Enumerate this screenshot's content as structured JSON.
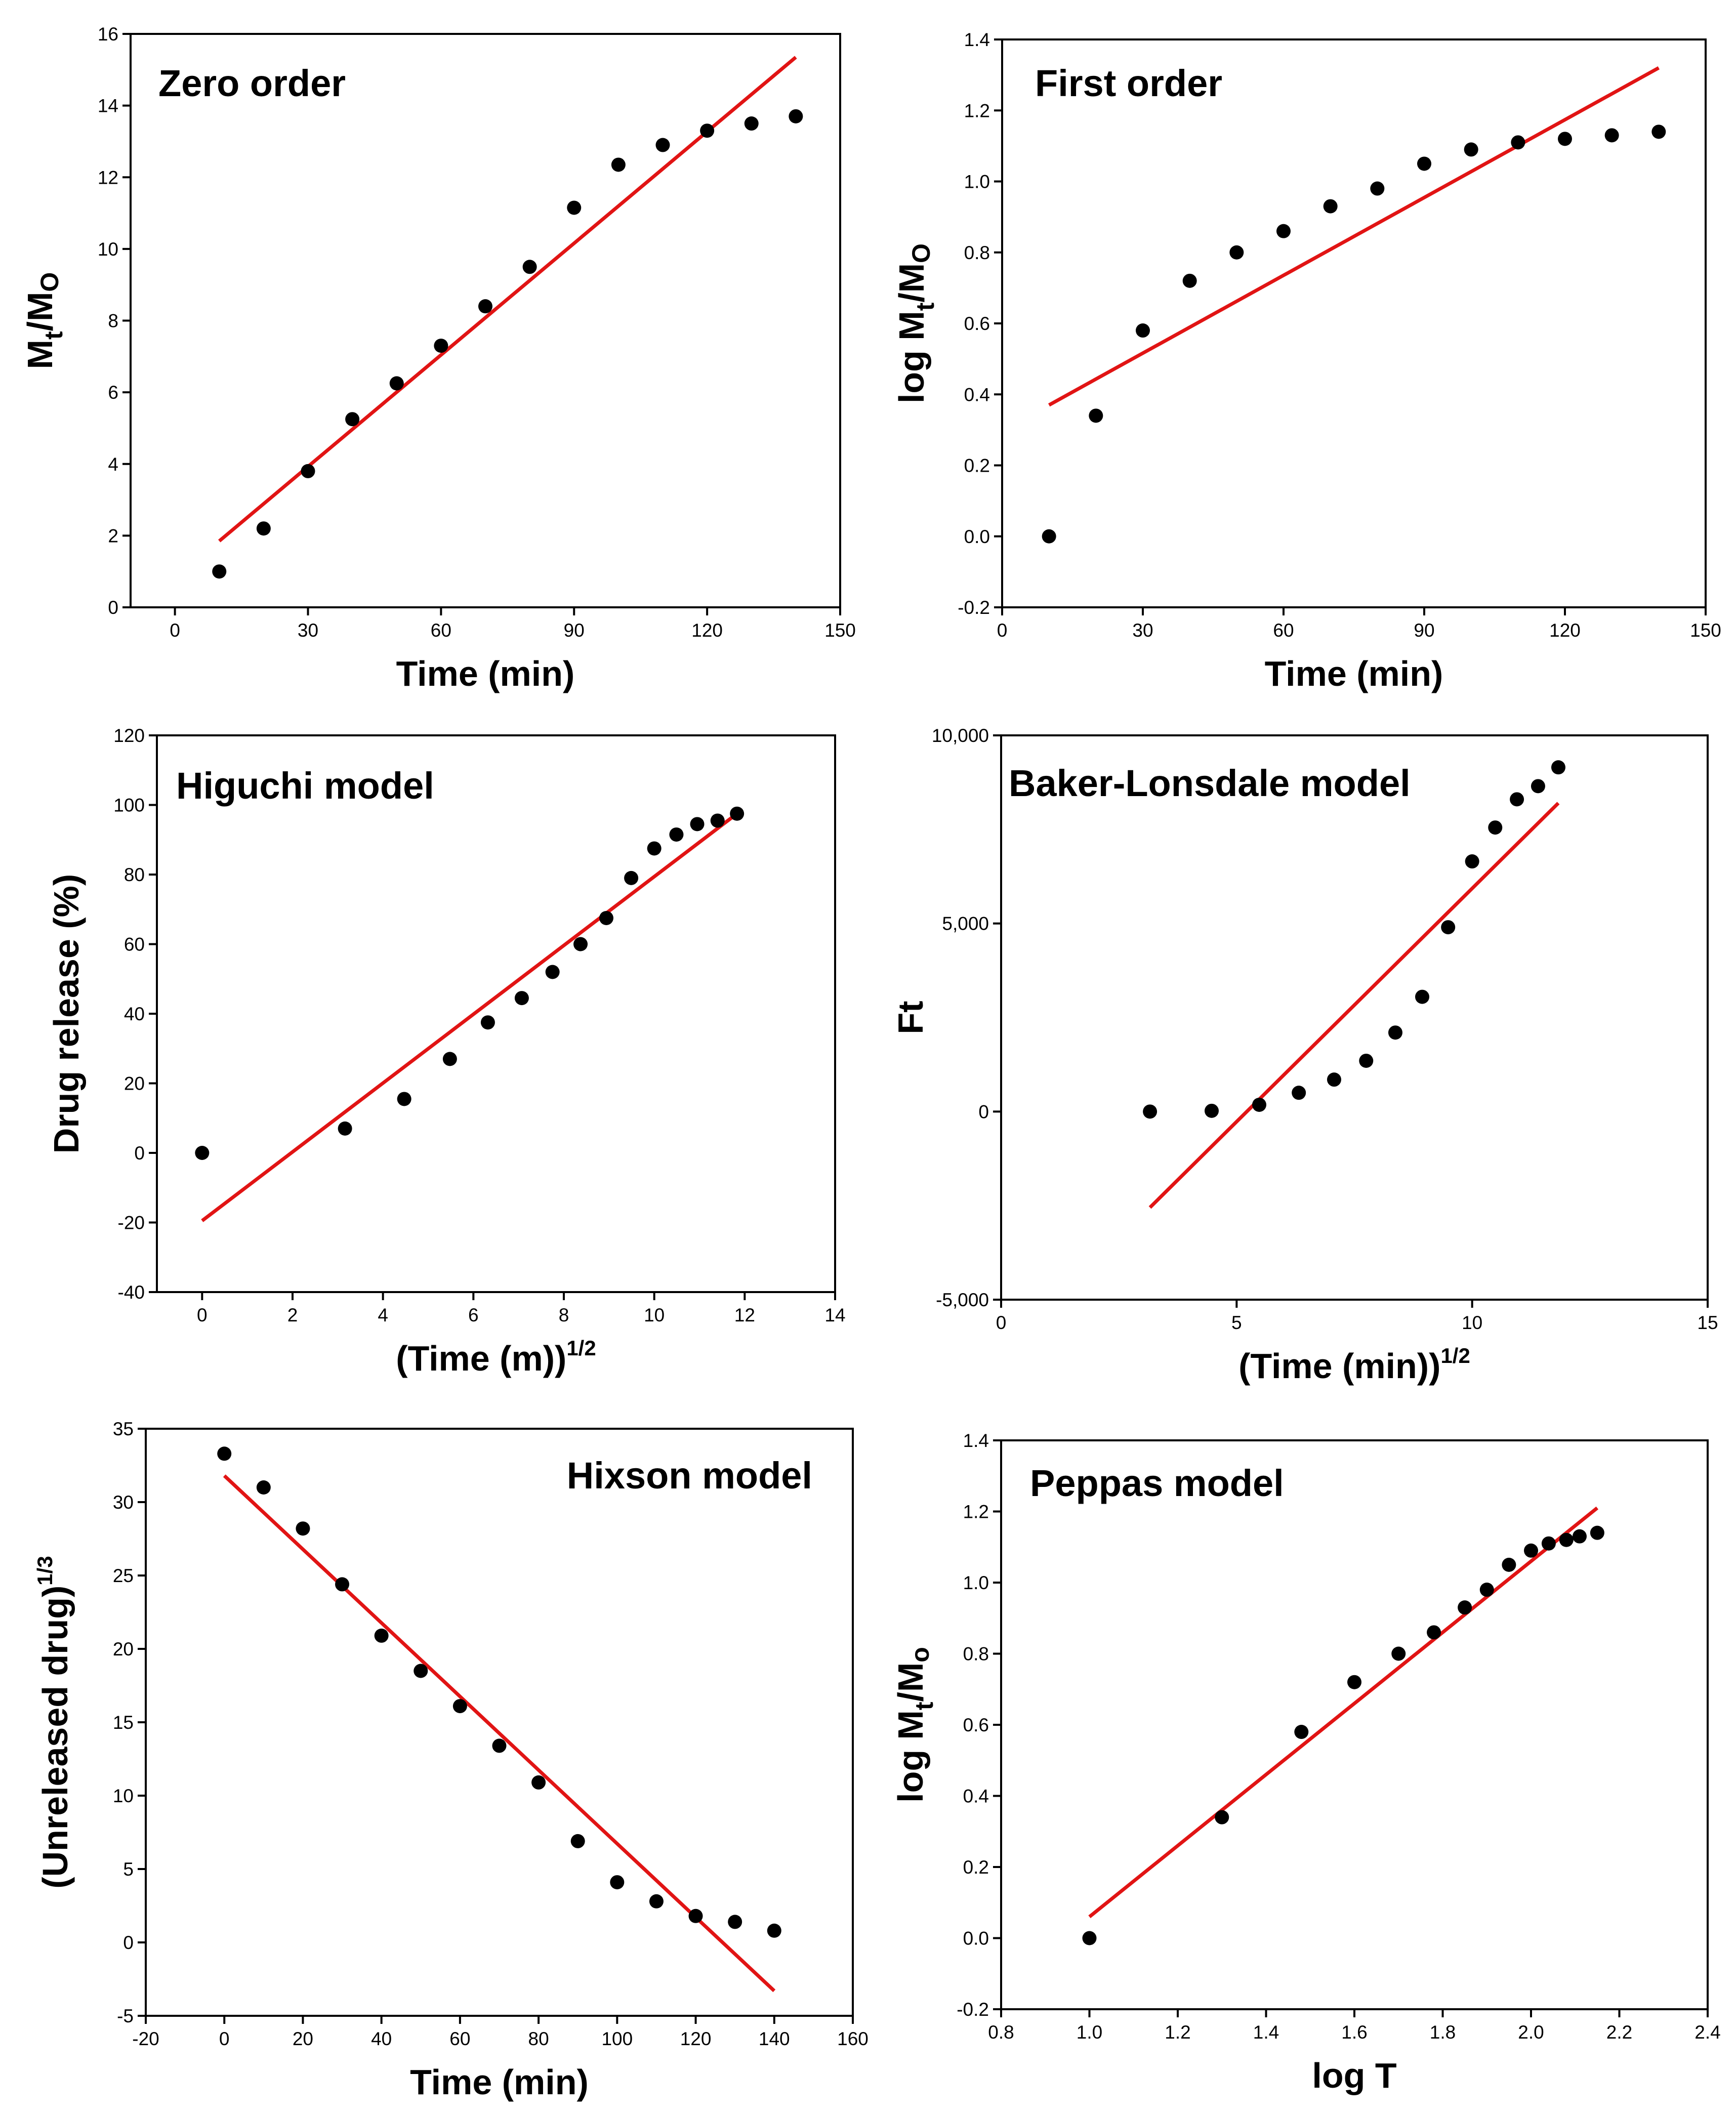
{
  "chart_data": [
    {
      "type": "scatter",
      "title": "Zero order",
      "title_pos": "top-left",
      "xlabel": "Time (min)",
      "ylabel": {
        "main": "M",
        "sub1": "t",
        "mid": "/M",
        "sub2": "O"
      },
      "xlim": [
        -10,
        150
      ],
      "ylim": [
        0,
        16
      ],
      "xticks": [
        0,
        30,
        60,
        90,
        120,
        150
      ],
      "xtick_labels": [
        "0",
        "30",
        "60",
        "90",
        "120",
        "150"
      ],
      "yticks": [
        0,
        2,
        4,
        6,
        8,
        10,
        12,
        14,
        16
      ],
      "ytick_labels": [
        "0",
        "2",
        "4",
        "6",
        "8",
        "10",
        "12",
        "14",
        "16"
      ],
      "points": {
        "x": [
          10,
          20,
          30,
          40,
          50,
          60,
          70,
          80,
          90,
          100,
          110,
          120,
          130,
          140
        ],
        "y": [
          1.0,
          2.2,
          3.8,
          5.25,
          6.25,
          7.3,
          8.4,
          9.5,
          11.15,
          12.35,
          12.9,
          13.3,
          13.5,
          13.7
        ]
      },
      "fit_line": {
        "x": [
          10,
          140
        ],
        "y": [
          1.85,
          15.35
        ]
      }
    },
    {
      "type": "scatter",
      "title": "First order",
      "title_pos": "top-left",
      "xlabel": "Time (min)",
      "ylabel": {
        "main": "log M",
        "sub1": "t",
        "mid": "/M",
        "sub2": "O"
      },
      "xlim": [
        0,
        150
      ],
      "ylim": [
        -0.2,
        1.4
      ],
      "xticks": [
        0,
        30,
        60,
        90,
        120,
        150
      ],
      "xtick_labels": [
        "0",
        "30",
        "60",
        "90",
        "120",
        "150"
      ],
      "yticks": [
        -0.2,
        0.0,
        0.2,
        0.4,
        0.6,
        0.8,
        1.0,
        1.2,
        1.4
      ],
      "ytick_labels": [
        "-0.2",
        "0.0",
        "0.2",
        "0.4",
        "0.6",
        "0.8",
        "1.0",
        "1.2",
        "1.4"
      ],
      "points": {
        "x": [
          10,
          20,
          30,
          40,
          50,
          60,
          70,
          80,
          90,
          100,
          110,
          120,
          130,
          140
        ],
        "y": [
          0.0,
          0.34,
          0.58,
          0.72,
          0.8,
          0.86,
          0.93,
          0.98,
          1.05,
          1.09,
          1.11,
          1.12,
          1.13,
          1.14
        ]
      },
      "fit_line": {
        "x": [
          10,
          140
        ],
        "y": [
          0.37,
          1.32
        ]
      }
    },
    {
      "type": "scatter",
      "title": "Higuchi model",
      "title_pos": "top-left",
      "xlabel": {
        "main": "(Time (m))",
        "sup": "1/2"
      },
      "ylabel": "Drug release (%)",
      "xlim": [
        -1,
        14
      ],
      "ylim": [
        -40,
        120
      ],
      "xticks": [
        0,
        2,
        4,
        6,
        8,
        10,
        12,
        14
      ],
      "xtick_labels": [
        "0",
        "2",
        "4",
        "6",
        "8",
        "10",
        "12",
        "14"
      ],
      "yticks": [
        -40,
        -20,
        0,
        20,
        40,
        60,
        80,
        100,
        120
      ],
      "ytick_labels": [
        "-40",
        "-20",
        "0",
        "20",
        "40",
        "60",
        "80",
        "100",
        "120"
      ],
      "points": {
        "x": [
          0,
          3.16,
          4.47,
          5.48,
          6.32,
          7.07,
          7.75,
          8.37,
          8.94,
          9.49,
          10.0,
          10.49,
          10.95,
          11.4,
          11.83
        ],
        "y": [
          0,
          7,
          15.5,
          27,
          37.5,
          44.5,
          52,
          60,
          67.5,
          79,
          87.5,
          91.5,
          94.5,
          95.5,
          97.5
        ]
      },
      "fit_line": {
        "x": [
          0,
          11.83
        ],
        "y": [
          -19.5,
          97.5
        ]
      }
    },
    {
      "type": "scatter",
      "title": "Baker-Lonsdale  model",
      "title_pos": "top-left",
      "xlabel": {
        "main": "(Time (min))",
        "sup": "1/2"
      },
      "ylabel": "Ft",
      "xlim": [
        0,
        15
      ],
      "ylim": [
        -5000,
        10000
      ],
      "xticks": [
        0,
        5,
        10,
        15
      ],
      "xtick_labels": [
        "0",
        "5",
        "10",
        "15"
      ],
      "yticks": [
        -5000,
        0,
        5000,
        10000
      ],
      "ytick_labels": [
        "-5,000",
        "0",
        "5,000",
        "10,000"
      ],
      "points": {
        "x": [
          3.16,
          4.47,
          5.48,
          6.32,
          7.07,
          7.75,
          8.37,
          8.94,
          9.49,
          10.0,
          10.49,
          10.95,
          11.4,
          11.83
        ],
        "y": [
          0,
          20,
          180,
          500,
          850,
          1350,
          2100,
          3050,
          4900,
          6650,
          7550,
          8300,
          8650,
          9150
        ]
      },
      "fit_line": {
        "x": [
          3.16,
          11.83
        ],
        "y": [
          -2550,
          8200
        ]
      }
    },
    {
      "type": "scatter",
      "title": "Hixson model",
      "title_pos": "top-right",
      "xlabel": "Time (min)",
      "ylabel": {
        "main": "(Unreleased drug)",
        "sup": "1/3"
      },
      "xlim": [
        -20,
        160
      ],
      "ylim": [
        -5,
        35
      ],
      "xticks": [
        -20,
        0,
        20,
        40,
        60,
        80,
        100,
        120,
        140,
        160
      ],
      "xtick_labels": [
        "-20",
        "0",
        "20",
        "40",
        "60",
        "80",
        "100",
        "120",
        "140",
        "160"
      ],
      "yticks": [
        -5,
        0,
        5,
        10,
        15,
        20,
        25,
        30,
        35
      ],
      "ytick_labels": [
        "-5",
        "0",
        "5",
        "10",
        "15",
        "20",
        "25",
        "30",
        "35"
      ],
      "points": {
        "x": [
          0,
          10,
          20,
          30,
          40,
          50,
          60,
          70,
          80,
          90,
          100,
          110,
          120,
          130,
          140
        ],
        "y": [
          33.3,
          31.0,
          28.2,
          24.4,
          20.9,
          18.5,
          16.1,
          13.4,
          10.9,
          6.9,
          4.1,
          2.8,
          1.8,
          1.4,
          0.8
        ]
      },
      "fit_line": {
        "x": [
          0,
          140
        ],
        "y": [
          31.8,
          -3.3
        ]
      }
    },
    {
      "type": "scatter",
      "title": "Peppas model",
      "title_pos": "top-left",
      "xlabel": "log T",
      "ylabel": {
        "main": "log M",
        "sub1": "t",
        "mid": "/M",
        "sub2": "o"
      },
      "xlim": [
        0.8,
        2.4
      ],
      "ylim": [
        -0.2,
        1.4
      ],
      "xticks": [
        0.8,
        1.0,
        1.2,
        1.4,
        1.6,
        1.8,
        2.0,
        2.2,
        2.4
      ],
      "xtick_labels": [
        "0.8",
        "1.0",
        "1.2",
        "1.4",
        "1.6",
        "1.8",
        "2.0",
        "2.2",
        "2.4"
      ],
      "yticks": [
        -0.2,
        0.0,
        0.2,
        0.4,
        0.6,
        0.8,
        1.0,
        1.2,
        1.4
      ],
      "ytick_labels": [
        "-0.2",
        "0.0",
        "0.2",
        "0.4",
        "0.6",
        "0.8",
        "1.0",
        "1.2",
        "1.4"
      ],
      "points": {
        "x": [
          1.0,
          1.3,
          1.48,
          1.6,
          1.7,
          1.78,
          1.85,
          1.9,
          1.95,
          2.0,
          2.04,
          2.08,
          2.11,
          2.15
        ],
        "y": [
          0.0,
          0.34,
          0.58,
          0.72,
          0.8,
          0.86,
          0.93,
          0.98,
          1.05,
          1.09,
          1.11,
          1.12,
          1.13,
          1.14
        ]
      },
      "fit_line": {
        "x": [
          1.0,
          2.15
        ],
        "y": [
          0.06,
          1.21
        ]
      }
    }
  ],
  "colors": {
    "fit_line": "#e11414",
    "points": "#000000",
    "axes": "#000000"
  }
}
